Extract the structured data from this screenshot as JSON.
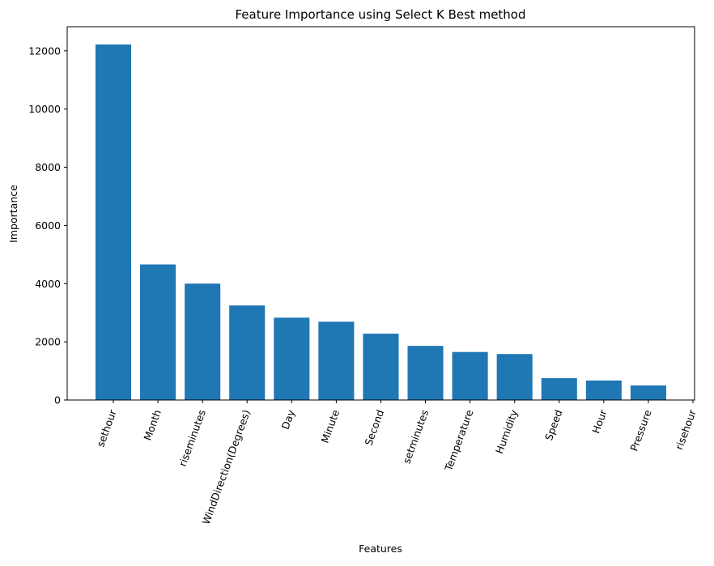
{
  "chart_data": {
    "type": "bar",
    "title": "Feature Importance using Select K Best method",
    "xlabel": "Features",
    "ylabel": "Importance",
    "categories": [
      "sethour",
      "Month",
      "riseminutes",
      "WindDirection(Degrees)",
      "Day",
      "Minute",
      "Second",
      "setminutes",
      "Temperature",
      "Humidity",
      "Speed",
      "Hour",
      "Pressure",
      "risehour"
    ],
    "values": [
      12220,
      4660,
      4000,
      3250,
      2830,
      2690,
      2280,
      1860,
      1650,
      1580,
      750,
      670,
      500,
      0
    ],
    "ylim": [
      0,
      12830
    ],
    "yticks": [
      0,
      2000,
      4000,
      6000,
      8000,
      10000,
      12000
    ],
    "ytick_labels": [
      "0",
      "2000",
      "4000",
      "6000",
      "8000",
      "10000",
      "12000"
    ],
    "bar_color": "#1f77b4",
    "grid": false,
    "legend": "none"
  }
}
